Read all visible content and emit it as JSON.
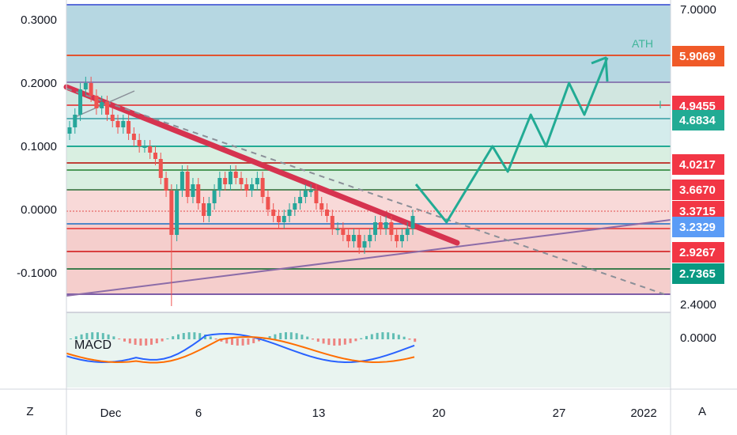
{
  "chart_data": {
    "type": "candlestick",
    "left_axis": {
      "ticks": [
        "0.3000",
        "0.2000",
        "0.1000",
        "0.0000",
        "-0.1000"
      ],
      "values": [
        0.3,
        0.2,
        0.1,
        0.0,
        -0.1
      ]
    },
    "right_axis": {
      "ticks": [
        "7.0000",
        "2.4000"
      ]
    },
    "x_axis": {
      "ticks": [
        "Dec",
        "6",
        "13",
        "20",
        "27",
        "2022"
      ]
    },
    "macd": {
      "label": "MACD",
      "value_tick": "0.0000"
    },
    "annotations": {
      "ath_label": "ATH",
      "marker_i": "I"
    },
    "price_badges": [
      {
        "value": "5.9069",
        "color": "#f05a28"
      },
      {
        "value": "4.9455",
        "color": "#f23645"
      },
      {
        "value": "4.6834",
        "color": "#22ab94"
      },
      {
        "value": "4.0217",
        "color": "#f23645"
      },
      {
        "value": "3.6670",
        "color": "#f23645"
      },
      {
        "value": "3.3715",
        "color": "#f23645"
      },
      {
        "value": "3.2329",
        "color": "#5b9cf6"
      },
      {
        "value": "2.9267",
        "color": "#f23645"
      },
      {
        "value": "2.7365",
        "color": "#089981"
      }
    ],
    "fib_levels": [
      {
        "color": "#5b6ed9"
      },
      {
        "color": "#e2532f"
      },
      {
        "color": "#8c7fb3"
      },
      {
        "color": "#e25555"
      },
      {
        "color": "#5ab0b5"
      },
      {
        "color": "#22ab94"
      },
      {
        "color": "#c0403a"
      },
      {
        "color": "#4e9a5a"
      },
      {
        "color": "#5a8a5e"
      },
      {
        "color": "#e85555"
      },
      {
        "color": "#4f88c8"
      },
      {
        "color": "#d94040"
      },
      {
        "color": "#3e7d4f"
      },
      {
        "color": "#7e5ea8"
      }
    ],
    "zones": [
      {
        "color": "#9ec9d8"
      },
      {
        "color": "#c2ddd6"
      },
      {
        "color": "#c6e6e6"
      },
      {
        "color": "#ccead7"
      },
      {
        "color": "#f6cccb"
      }
    ],
    "candles_close": [
      0.13,
      0.15,
      0.19,
      0.2,
      0.18,
      0.16,
      0.17,
      0.15,
      0.14,
      0.13,
      0.14,
      0.12,
      0.11,
      0.1,
      0.1,
      0.09,
      0.08,
      0.05,
      0.03,
      -0.04,
      0.03,
      0.06,
      0.02,
      0.04,
      0.01,
      -0.01,
      0.01,
      0.03,
      0.05,
      0.04,
      0.06,
      0.05,
      0.04,
      0.03,
      0.04,
      0.05,
      0.02,
      0.0,
      -0.01,
      -0.02,
      -0.01,
      0.0,
      0.01,
      0.02,
      0.03,
      0.03,
      0.01,
      0.0,
      -0.01,
      -0.03,
      -0.03,
      -0.04,
      -0.05,
      -0.04,
      -0.06,
      -0.05,
      -0.04,
      -0.02,
      -0.03,
      -0.02,
      -0.04,
      -0.05,
      -0.04,
      -0.03,
      -0.01
    ],
    "forecast_path": [
      [
        0.0,
        0.04
      ],
      [
        0.04,
        -0.02
      ],
      [
        0.1,
        0.1
      ],
      [
        0.12,
        0.06
      ],
      [
        0.15,
        0.15
      ],
      [
        0.17,
        0.1
      ],
      [
        0.2,
        0.2
      ],
      [
        0.22,
        0.15
      ],
      [
        0.25,
        0.24
      ]
    ],
    "colors": {
      "up": "#26a69a",
      "down": "#ef5350",
      "forecast": "#22ab94",
      "trend_down": "#d6334f",
      "trend_up": "#8c6ca8"
    }
  },
  "ui": {
    "left_corner": "Z",
    "right_corner": "A"
  }
}
